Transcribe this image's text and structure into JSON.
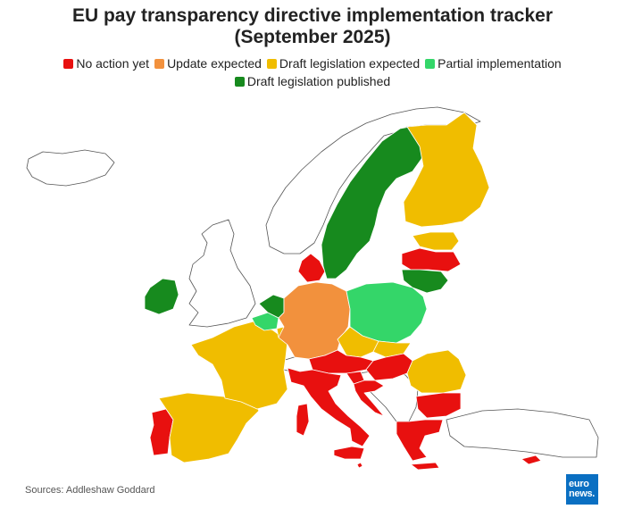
{
  "title_line1": "EU pay transparency directive implementation tracker",
  "title_line2": "(September 2025)",
  "legend": [
    {
      "label": "No action yet",
      "color": "#e8100f"
    },
    {
      "label": "Update expected",
      "color": "#f2913d"
    },
    {
      "label": "Draft legislation expected",
      "color": "#f0bd00"
    },
    {
      "label": "Partial implementation",
      "color": "#34d669"
    },
    {
      "label": "Draft legislation published",
      "color": "#178a1e"
    }
  ],
  "countries": {
    "Ireland": "Draft legislation published",
    "Portugal": "No action yet",
    "Spain": "Draft legislation expected",
    "France": "Draft legislation expected",
    "Belgium": "Partial implementation",
    "Netherlands": "Draft legislation published",
    "Luxembourg": "Draft legislation expected",
    "Germany": "Update expected",
    "Denmark": "No action yet",
    "Sweden": "Draft legislation published",
    "Finland": "Draft legislation expected",
    "Estonia": "Draft legislation expected",
    "Latvia": "No action yet",
    "Lithuania": "Draft legislation published",
    "Poland": "Partial implementation",
    "Czechia": "Draft legislation expected",
    "Slovakia": "Draft legislation expected",
    "Austria": "No action yet",
    "Hungary": "No action yet",
    "Slovenia": "No action yet",
    "Croatia": "No action yet",
    "Italy": "No action yet",
    "Romania": "Draft legislation expected",
    "Bulgaria": "No action yet",
    "Greece": "No action yet",
    "Malta": "No action yet",
    "Cyprus": "No action yet"
  },
  "source": "Sources: Addleshaw Goddard",
  "logo_line1": "euro",
  "logo_line2": "news."
}
